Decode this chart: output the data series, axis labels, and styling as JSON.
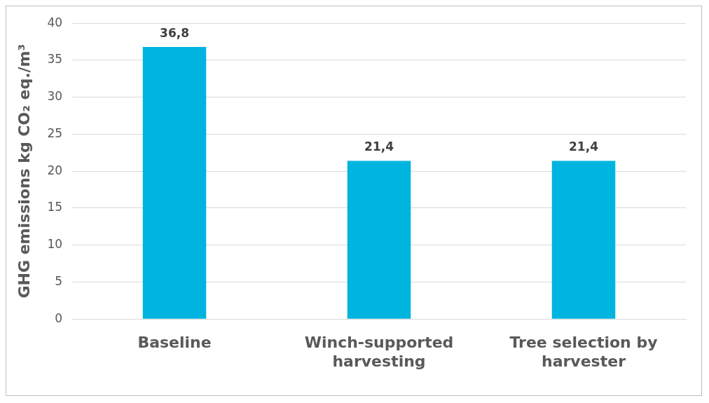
{
  "chart_data": {
    "type": "bar",
    "ylabel": "GHG emissions kg CO₂ eq./m³",
    "categories": [
      "Baseline",
      "Winch-supported harvesting",
      "Tree selection by harvester"
    ],
    "values": [
      36.8,
      21.4,
      21.4
    ],
    "color": "#00b4e0",
    "value_labels": [
      "36,8",
      "21,4",
      "21,4"
    ],
    "ylim": [
      0,
      40
    ],
    "yticks": [
      0,
      5,
      10,
      15,
      20,
      25,
      30,
      35,
      40
    ],
    "grid": "y",
    "legend": false
  }
}
